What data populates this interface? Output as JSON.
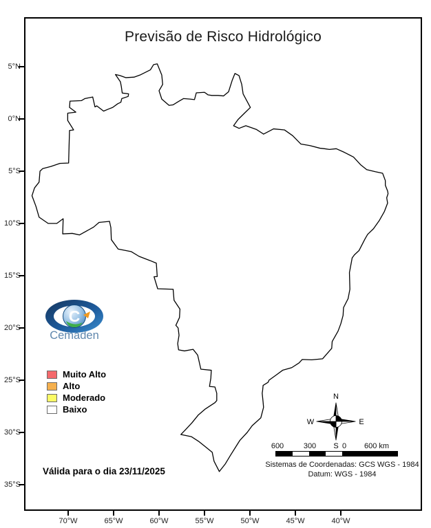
{
  "title": "Previsão de Risco Hidrológico",
  "validity": "Válida para o dia 23/11/2025",
  "logo": {
    "text": "Cemaden",
    "monogram": "C"
  },
  "legend": {
    "items": [
      {
        "label": "Muito Alto",
        "color": "#f4696c"
      },
      {
        "label": "Alto",
        "color": "#f5b04e"
      },
      {
        "label": "Moderado",
        "color": "#fbfb66"
      },
      {
        "label": "Baixo",
        "color": "#ffffff"
      }
    ]
  },
  "axes": {
    "lat_ticks": [
      "5°N",
      "0°N",
      "5°S",
      "10°S",
      "15°S",
      "20°S",
      "25°S",
      "30°S",
      "35°S"
    ],
    "lon_ticks": [
      "70°W",
      "65°W",
      "60°W",
      "55°W",
      "50°W",
      "45°W",
      "40°W"
    ]
  },
  "compass": {
    "n": "N",
    "s": "S",
    "e": "E",
    "w": "W"
  },
  "scalebar": {
    "labels": [
      "600",
      "300",
      "0",
      "600 km"
    ]
  },
  "coords_note": {
    "line1": "Sistemas de Coordenadas: GCS WGS - 1984",
    "line2": "Datum: WGS - 1984"
  },
  "map": {
    "region": "Brasil",
    "border_color": "#000000",
    "municipality_line_color": "#c8c8c8",
    "fill_color": "#ffffff"
  }
}
